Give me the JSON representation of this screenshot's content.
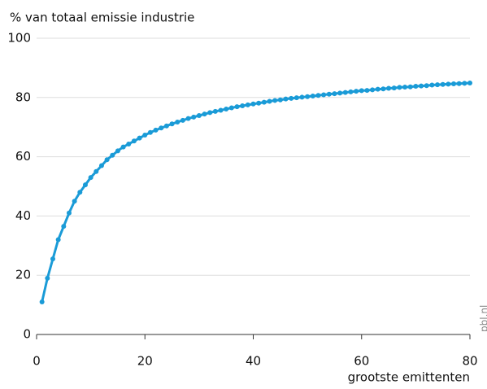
{
  "chart_data": {
    "type": "line",
    "title": "% van totaal emissie industrie",
    "x_label": "grootste emittenten",
    "source": "pbl.nl",
    "x": [
      1,
      2,
      3,
      4,
      5,
      6,
      7,
      8,
      9,
      10,
      11,
      12,
      13,
      14,
      15,
      16,
      17,
      18,
      19,
      20,
      21,
      22,
      23,
      24,
      25,
      26,
      27,
      28,
      29,
      30,
      31,
      32,
      33,
      34,
      35,
      36,
      37,
      38,
      39,
      40,
      41,
      42,
      43,
      44,
      45,
      46,
      47,
      48,
      49,
      50,
      51,
      52,
      53,
      54,
      55,
      56,
      57,
      58,
      59,
      60,
      61,
      62,
      63,
      64,
      65,
      66,
      67,
      68,
      69,
      70,
      71,
      72,
      73,
      74,
      75,
      76,
      77,
      78,
      79,
      80
    ],
    "series": [
      {
        "color": "#1a9bd7",
        "values": [
          11,
          19,
          25.5,
          32,
          36.5,
          41,
          45,
          48,
          50.5,
          53,
          55,
          57,
          59,
          60.5,
          62,
          63.3,
          64.3,
          65.3,
          66.3,
          67.3,
          68.2,
          69,
          69.7,
          70.4,
          71.1,
          71.7,
          72.3,
          72.9,
          73.4,
          73.9,
          74.4,
          74.9,
          75.3,
          75.7,
          76.1,
          76.5,
          76.9,
          77.2,
          77.5,
          77.8,
          78.1,
          78.4,
          78.7,
          79,
          79.2,
          79.5,
          79.7,
          79.9,
          80.1,
          80.3,
          80.5,
          80.7,
          80.9,
          81.1,
          81.3,
          81.5,
          81.7,
          81.9,
          82.1,
          82.3,
          82.4,
          82.6,
          82.8,
          82.9,
          83.1,
          83.2,
          83.4,
          83.5,
          83.6,
          83.8,
          83.9,
          84,
          84.2,
          84.3,
          84.4,
          84.5,
          84.6,
          84.7,
          84.8,
          84.9
        ]
      }
    ],
    "xlim": [
      0,
      80
    ],
    "xticks": [
      0,
      20,
      40,
      60,
      80
    ],
    "ylim": [
      0,
      100
    ],
    "yticks": [
      0,
      20,
      40,
      60,
      80,
      100
    ],
    "grid": true
  }
}
